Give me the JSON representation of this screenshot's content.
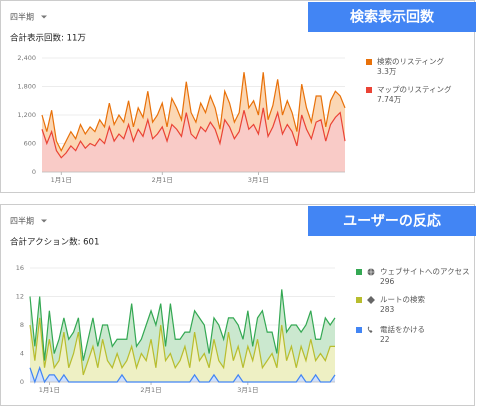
{
  "chart_data": [
    {
      "type": "area",
      "stacked": true,
      "header": "検索表示回数",
      "period": "四半期",
      "subtitle": "合計表示回数: 11万",
      "categories": [
        null,
        null,
        null,
        null,
        "1月1日",
        null,
        null,
        null,
        null,
        null,
        null,
        null,
        null,
        null,
        null,
        null,
        null,
        null,
        null,
        null,
        null,
        null,
        null,
        null,
        null,
        "2月1日",
        null,
        null,
        null,
        null,
        null,
        null,
        null,
        null,
        null,
        null,
        null,
        null,
        null,
        null,
        null,
        null,
        null,
        null,
        null,
        "3月1日",
        null,
        null,
        null,
        null,
        null,
        null,
        null,
        null,
        null,
        null,
        null,
        null,
        null,
        null,
        null,
        null,
        null,
        null
      ],
      "ylim": [
        0,
        2400
      ],
      "yticks": [
        0,
        600,
        {
          "value": 1200,
          "label": "1,200"
        },
        {
          "value": 1800,
          "label": "1,800"
        },
        {
          "value": 2400,
          "label": "2,400"
        }
      ],
      "grid": true,
      "series": [
        {
          "name": "検索のリスティング",
          "total": "3.3万",
          "color": "#e8710a",
          "fill": "#fbd7b4",
          "values": [
            300,
            250,
            450,
            200,
            150,
            250,
            300,
            250,
            350,
            300,
            350,
            300,
            400,
            350,
            500,
            350,
            400,
            350,
            500,
            300,
            450,
            400,
            600,
            350,
            400,
            500,
            300,
            550,
            450,
            350,
            650,
            450,
            350,
            500,
            400,
            550,
            450,
            300,
            600,
            500,
            350,
            400,
            800,
            450,
            500,
            400,
            750,
            350,
            450,
            700,
            400,
            500,
            400,
            300,
            650,
            450,
            350,
            550,
            500,
            300,
            500,
            550,
            350,
            700
          ]
        },
        {
          "name": "マップのリスティング",
          "total": "7.74万",
          "color": "#ea4335",
          "fill": "#f9cbc7",
          "values": [
            900,
            600,
            850,
            450,
            300,
            400,
            550,
            450,
            650,
            500,
            600,
            550,
            700,
            600,
            950,
            650,
            800,
            700,
            1000,
            650,
            900,
            750,
            1100,
            700,
            800,
            950,
            650,
            1000,
            900,
            750,
            1250,
            800,
            700,
            950,
            850,
            1050,
            900,
            600,
            1100,
            950,
            700,
            850,
            1300,
            900,
            1000,
            800,
            1350,
            750,
            950,
            1250,
            800,
            1000,
            850,
            550,
            1200,
            900,
            700,
            1050,
            1100,
            650,
            1000,
            1150,
            1250,
            650
          ]
        }
      ]
    },
    {
      "type": "area",
      "stacked": true,
      "header": "ユーザーの反応",
      "period": "四半期",
      "subtitle": "合計アクション数: 601",
      "categories": [
        null,
        null,
        null,
        null,
        "1月1日",
        null,
        null,
        null,
        null,
        null,
        null,
        null,
        null,
        null,
        null,
        null,
        null,
        null,
        null,
        null,
        null,
        null,
        null,
        null,
        null,
        "2月1日",
        null,
        null,
        null,
        null,
        null,
        null,
        null,
        null,
        null,
        null,
        null,
        null,
        null,
        null,
        null,
        null,
        null,
        null,
        null,
        "3月1日",
        null,
        null,
        null,
        null,
        null,
        null,
        null,
        null,
        null,
        null,
        null,
        null,
        null,
        null,
        null,
        null,
        null,
        null
      ],
      "ylim": [
        0,
        16
      ],
      "yticks": [
        0,
        4,
        8,
        12,
        16
      ],
      "grid": true,
      "series": [
        {
          "name": "ウェブサイトへのアクセス",
          "total": "296",
          "color": "#34a853",
          "fill": "#cbe8cf",
          "values": [
            4,
            2,
            3,
            1,
            4,
            2,
            3,
            2,
            4,
            3,
            2,
            2,
            3,
            4,
            3,
            2,
            5,
            3,
            2,
            4,
            3,
            6,
            3,
            2,
            5,
            4,
            6,
            3,
            2,
            7,
            4,
            3,
            2,
            5,
            3,
            6,
            4,
            2,
            3,
            5,
            4,
            2,
            6,
            3,
            4,
            5,
            2,
            3,
            8,
            4,
            3,
            2,
            5,
            4,
            3,
            6,
            2,
            5,
            4,
            3,
            2,
            6,
            3,
            4
          ]
        },
        {
          "name": "ルートの検索",
          "total": "283",
          "color": "#b8bd2e",
          "fill": "#eef0c4",
          "values": [
            6,
            3,
            7,
            2,
            5,
            1,
            3,
            6,
            2,
            4,
            7,
            1,
            3,
            5,
            2,
            6,
            3,
            2,
            4,
            1,
            3,
            5,
            2,
            4,
            3,
            6,
            2,
            8,
            3,
            4,
            2,
            3,
            5,
            2,
            6,
            3,
            4,
            2,
            5,
            3,
            2,
            7,
            3,
            4,
            2,
            5,
            3,
            6,
            2,
            3,
            4,
            2,
            8,
            3,
            5,
            2,
            4,
            3,
            6,
            2,
            4,
            3,
            5,
            4
          ]
        },
        {
          "name": "電話をかける",
          "total": "22",
          "color": "#4285f4",
          "fill": "#cfe0fc",
          "values": [
            2,
            0,
            2,
            0,
            1,
            1,
            0,
            1,
            0,
            0,
            0,
            0,
            0,
            0,
            0,
            0,
            0,
            0,
            0,
            1,
            0,
            0,
            0,
            0,
            0,
            0,
            0,
            0,
            0,
            0,
            0,
            0,
            0,
            0,
            1,
            0,
            0,
            0,
            1,
            0,
            0,
            0,
            0,
            1,
            0,
            0,
            0,
            0,
            0,
            0,
            0,
            0,
            0,
            0,
            0,
            0,
            1,
            0,
            0,
            1,
            0,
            0,
            0,
            1
          ]
        }
      ]
    }
  ]
}
